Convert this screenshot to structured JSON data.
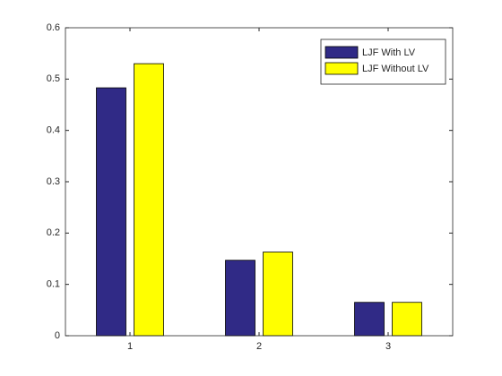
{
  "chart_data": {
    "type": "bar",
    "categories": [
      "1",
      "2",
      "3"
    ],
    "series": [
      {
        "name": "LJF With LV",
        "color": "#302a86",
        "values": [
          0.483,
          0.147,
          0.065
        ]
      },
      {
        "name": "LJF Without LV",
        "color": "#ffff00",
        "values": [
          0.53,
          0.163,
          0.065
        ]
      }
    ],
    "ylim": [
      0,
      0.6
    ],
    "yticks": [
      0,
      0.1,
      0.2,
      0.3,
      0.4,
      0.5,
      0.6
    ],
    "grid": false,
    "legend": "top-right"
  }
}
